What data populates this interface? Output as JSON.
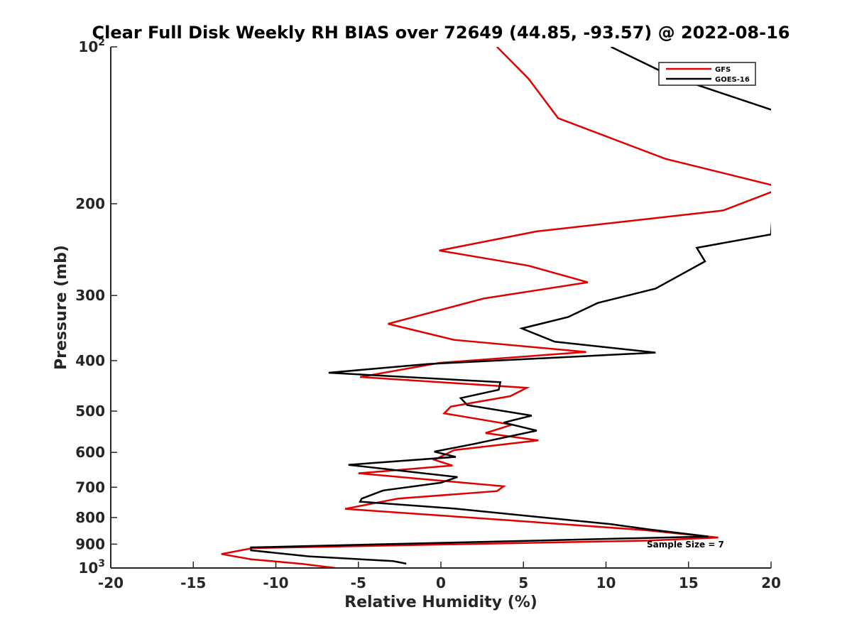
{
  "chart_data": {
    "type": "line",
    "title": "Clear Full Disk Weekly RH BIAS over 72649 (44.85, -93.57) @ 2022-08-16",
    "xlabel": "Relative Humidity (%)",
    "ylabel": "Pressure (mb)",
    "xlim": [
      -20,
      20
    ],
    "ylim": [
      100,
      1000
    ],
    "y_scale": "log",
    "y_reversed": true,
    "grid": false,
    "legend_position": "top-right",
    "x_ticks": [
      -20,
      -15,
      -10,
      -5,
      0,
      5,
      10,
      15,
      20
    ],
    "x_tick_labels": [
      "-20",
      "-15",
      "-10",
      "-5",
      "0",
      "5",
      "10",
      "15",
      "20"
    ],
    "y_ticks": [
      {
        "value": 100,
        "base": "10",
        "exp": "2"
      },
      {
        "value": 200,
        "label": "200"
      },
      {
        "value": 300,
        "label": "300"
      },
      {
        "value": 400,
        "label": "400"
      },
      {
        "value": 500,
        "label": "500"
      },
      {
        "value": 600,
        "label": "600"
      },
      {
        "value": 700,
        "label": "700"
      },
      {
        "value": 800,
        "label": "800"
      },
      {
        "value": 900,
        "label": "900"
      },
      {
        "value": 1000,
        "base": "10",
        "exp": "3"
      }
    ],
    "annotation": "Sample Size = 7",
    "series": [
      {
        "name": "GFS",
        "color": "#e00000",
        "points": [
          [
            3.4,
            100
          ],
          [
            5.3,
            115
          ],
          [
            7.1,
            137
          ],
          [
            13.6,
            164
          ],
          [
            20.0,
            184
          ],
          [
            20.5,
            189
          ],
          [
            20.0,
            190
          ],
          [
            17.1,
            206
          ],
          [
            5.8,
            226
          ],
          [
            -0.1,
            246
          ],
          [
            5.3,
            263
          ],
          [
            8.9,
            283
          ],
          [
            2.6,
            304
          ],
          [
            -3.2,
            340
          ],
          [
            0.8,
            365
          ],
          [
            8.8,
            385
          ],
          [
            -0.1,
            404
          ],
          [
            -4.9,
            430
          ],
          [
            5.2,
            451
          ],
          [
            4.2,
            468
          ],
          [
            0.6,
            490
          ],
          [
            0.2,
            505
          ],
          [
            4.3,
            531
          ],
          [
            2.7,
            551
          ],
          [
            5.9,
            569
          ],
          [
            0.8,
            594
          ],
          [
            -0.4,
            620
          ],
          [
            0.7,
            636
          ],
          [
            -5.0,
            658
          ],
          [
            3.8,
            697
          ],
          [
            3.4,
            712
          ],
          [
            -2.6,
            736
          ],
          [
            -5.8,
            770
          ],
          [
            4.1,
            810
          ],
          [
            12.4,
            846
          ],
          [
            16.8,
            874
          ],
          [
            12.6,
            886
          ],
          [
            -11.4,
            916
          ],
          [
            -13.3,
            940
          ],
          [
            -11.5,
            962
          ],
          [
            -8.4,
            982
          ],
          [
            -6.4,
            1000
          ]
        ]
      },
      {
        "name": "GOES-16",
        "color": "#000000",
        "points": [
          [
            10.3,
            100
          ],
          [
            14.0,
            114
          ],
          [
            20.0,
            132
          ],
          [
            20.5,
            135
          ],
          [
            20.0,
            229
          ],
          [
            15.5,
            243
          ],
          [
            16.0,
            258
          ],
          [
            13.0,
            291
          ],
          [
            9.5,
            310
          ],
          [
            7.7,
            330
          ],
          [
            4.9,
            347
          ],
          [
            6.9,
            368
          ],
          [
            13.0,
            386
          ],
          [
            -0.8,
            406
          ],
          [
            -6.8,
            422
          ],
          [
            3.6,
            440
          ],
          [
            3.5,
            455
          ],
          [
            1.2,
            472
          ],
          [
            1.6,
            487
          ],
          [
            5.5,
            510
          ],
          [
            3.8,
            526
          ],
          [
            5.8,
            545
          ],
          [
            2.0,
            578
          ],
          [
            -0.4,
            598
          ],
          [
            0.9,
            612
          ],
          [
            -5.6,
            634
          ],
          [
            1.0,
            669
          ],
          [
            0.0,
            686
          ],
          [
            -3.5,
            710
          ],
          [
            -4.8,
            736
          ],
          [
            -4.9,
            746
          ],
          [
            0.8,
            769
          ],
          [
            10.3,
            824
          ],
          [
            12.6,
            843
          ],
          [
            16.2,
            870
          ],
          [
            -11.5,
            913
          ],
          [
            -11.5,
            925
          ],
          [
            -8.0,
            950
          ],
          [
            -2.9,
            970
          ],
          [
            -2.1,
            981
          ]
        ]
      }
    ]
  }
}
